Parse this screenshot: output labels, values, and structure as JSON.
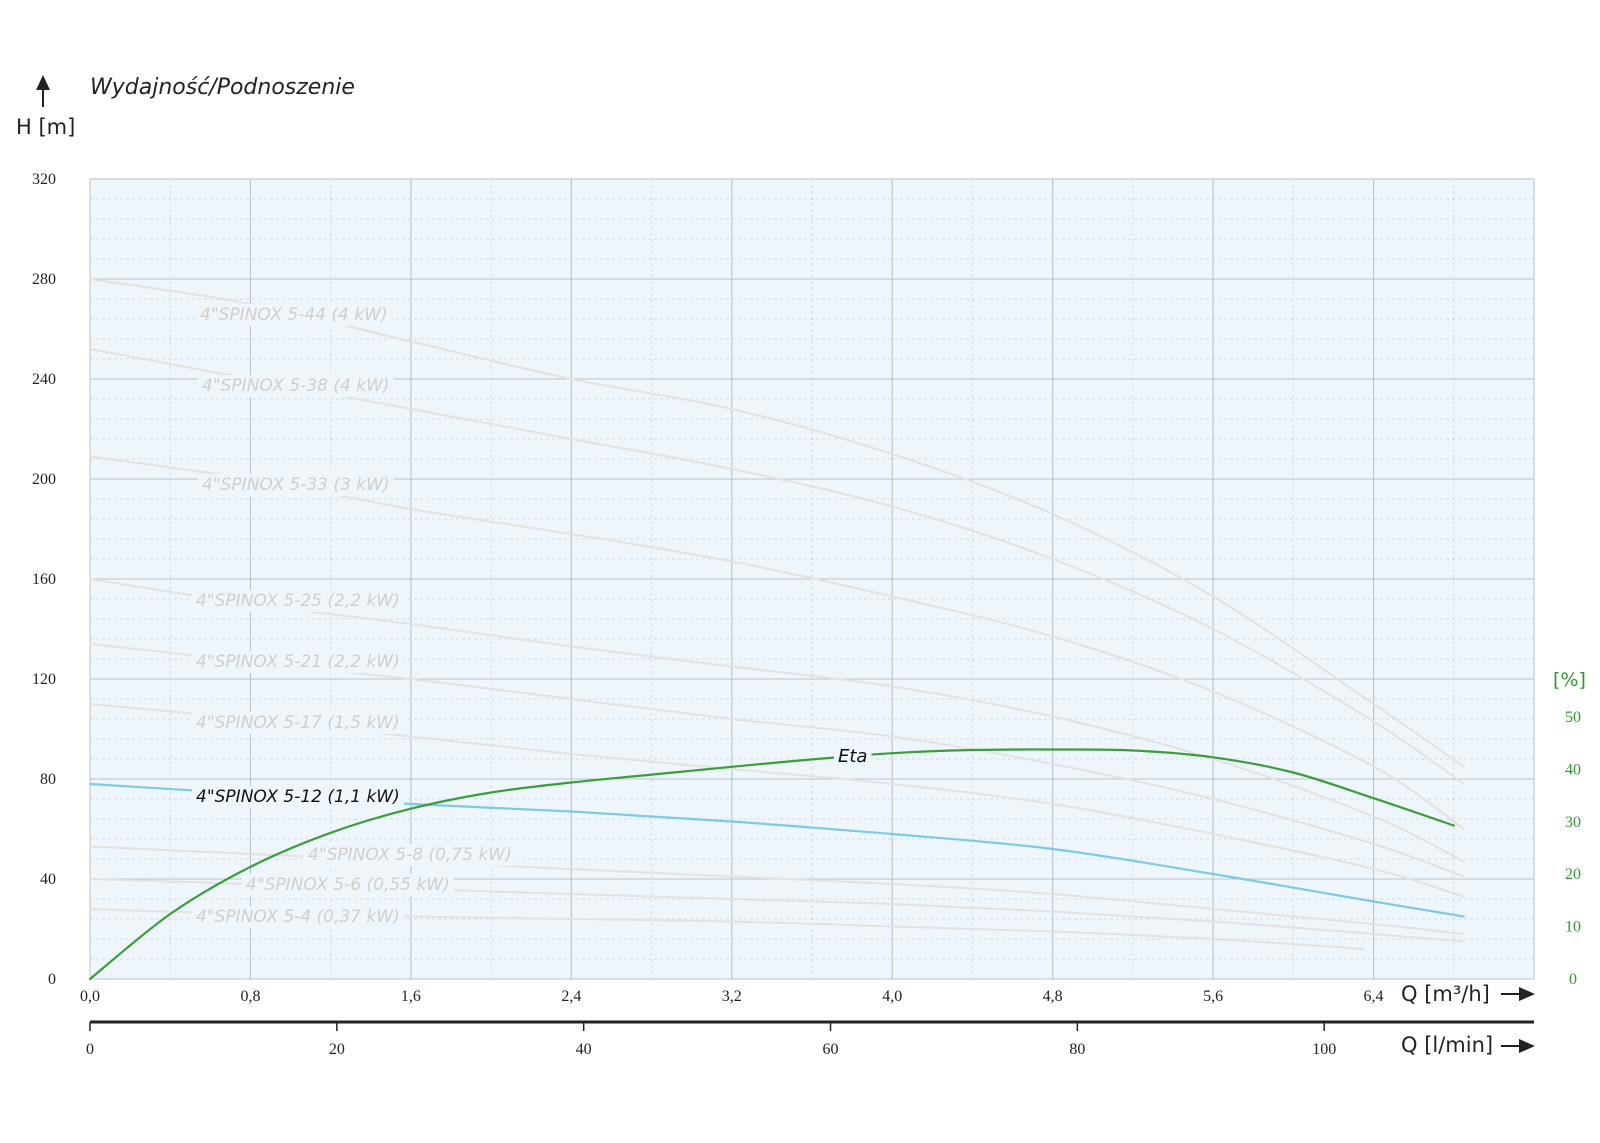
{
  "title": "Wydajność/Podnoszenie",
  "y_axis_label": "H [m]",
  "x_axis_label_m3h": "Q [m³/h]",
  "x_axis_label_lmin": "Q [l/min]",
  "eta_axis_label": "[%]",
  "colors": {
    "background": "#eef5fb",
    "grid_major": "#b9c3cc",
    "grid_minor": "#ccd5dd",
    "inactive_curve": "#e2e2e2",
    "active_curve": "#7ccae6",
    "eta_curve": "#3a9e3a"
  },
  "chart_data": {
    "type": "line",
    "title": "Wydajność/Podnoszenie",
    "xlabel": "Q [m³/h]",
    "ylabel": "H [m]",
    "xlim": [
      0,
      7.2
    ],
    "ylim": [
      0,
      320
    ],
    "x_ticks": [
      "0,0",
      "0,8",
      "1,6",
      "2,4",
      "3,2",
      "4,0",
      "4,8",
      "5,6",
      "6,4"
    ],
    "x_tick_values": [
      0,
      0.8,
      1.6,
      2.4,
      3.2,
      4.0,
      4.8,
      5.6,
      6.4
    ],
    "y_ticks": [
      "0",
      "40",
      "80",
      "120",
      "160",
      "200",
      "240",
      "280",
      "320"
    ],
    "y_tick_values": [
      0,
      40,
      80,
      120,
      160,
      200,
      240,
      280,
      320
    ],
    "secondary_x_axis": {
      "label": "Q [l/min]",
      "ticks": [
        "0",
        "20",
        "40",
        "60",
        "80",
        "100"
      ],
      "tick_values": [
        0,
        20,
        40,
        60,
        80,
        100
      ],
      "xlim": [
        0,
        117
      ]
    },
    "secondary_y_axis": {
      "label": "[%]",
      "ticks": [
        "0",
        "10",
        "20",
        "30",
        "40",
        "50"
      ],
      "tick_values": [
        0,
        10,
        20,
        30,
        40,
        50
      ]
    },
    "grid": true,
    "series": [
      {
        "name": "4\"SPINOX 5-44 (4 kW)",
        "active": false,
        "x": [
          0,
          0.8,
          1.6,
          2.4,
          3.2,
          4.0,
          4.8,
          5.6,
          6.4,
          6.85
        ],
        "y": [
          280,
          270,
          255,
          240,
          228,
          210,
          186,
          153,
          110,
          85
        ]
      },
      {
        "name": "4\"SPINOX 5-38 (4 kW)",
        "active": false,
        "x": [
          0,
          0.8,
          1.6,
          2.4,
          3.2,
          4.0,
          4.8,
          5.6,
          6.4,
          6.85
        ],
        "y": [
          252,
          240,
          228,
          216,
          204,
          189,
          168,
          140,
          103,
          78
        ]
      },
      {
        "name": "4\"SPINOX 5-33 (3 kW)",
        "active": false,
        "x": [
          0,
          0.8,
          1.6,
          2.4,
          3.2,
          4.0,
          4.8,
          5.6,
          6.4,
          6.85
        ],
        "y": [
          209,
          200,
          188,
          178,
          167,
          153,
          137,
          115,
          85,
          60
        ]
      },
      {
        "name": "4\"SPINOX 5-25 (2,2 kW)",
        "active": false,
        "x": [
          0,
          0.8,
          1.6,
          2.4,
          3.2,
          4.0,
          4.8,
          5.6,
          6.4,
          6.85
        ],
        "y": [
          160,
          150,
          142,
          133,
          125,
          117,
          105,
          88,
          65,
          47
        ]
      },
      {
        "name": "4\"SPINOX 5-21 (2,2 kW)",
        "active": false,
        "x": [
          0,
          0.8,
          1.6,
          2.4,
          3.2,
          4.0,
          4.8,
          5.6,
          6.4,
          6.85
        ],
        "y": [
          134,
          127,
          120,
          112,
          104,
          97,
          86,
          72,
          54,
          41
        ]
      },
      {
        "name": "4\"SPINOX 5-17 (1,5 kW)",
        "active": false,
        "x": [
          0,
          0.8,
          1.6,
          2.4,
          3.2,
          4.0,
          4.8,
          5.6,
          6.4,
          6.85
        ],
        "y": [
          110,
          104,
          97,
          90,
          84,
          78,
          70,
          58,
          44,
          33
        ]
      },
      {
        "name": "4\"SPINOX 5-12 (1,1 kW)",
        "active": true,
        "x": [
          0,
          0.8,
          1.6,
          2.4,
          3.2,
          4.0,
          4.8,
          5.6,
          6.4,
          6.85
        ],
        "y": [
          78,
          74,
          70,
          67,
          63,
          58,
          52,
          42,
          31,
          25
        ]
      },
      {
        "name": "4\"SPINOX 5-8 (0,75 kW)",
        "active": false,
        "x": [
          0,
          0.8,
          1.6,
          2.4,
          3.2,
          4.0,
          4.8,
          5.6,
          6.4,
          6.85
        ],
        "y": [
          53,
          50,
          47,
          44,
          41,
          38,
          34,
          28,
          22,
          18
        ]
      },
      {
        "name": "4\"SPINOX 5-6 (0,55 kW)",
        "active": false,
        "x": [
          0,
          0.8,
          1.6,
          2.4,
          3.2,
          4.0,
          4.8,
          5.6,
          6.4,
          6.85
        ],
        "y": [
          40,
          38,
          36,
          34,
          32,
          30,
          27,
          23,
          18,
          15
        ]
      },
      {
        "name": "4\"SPINOX 5-4 (0,37 kW)",
        "active": false,
        "x": [
          0,
          0.8,
          1.6,
          2.4,
          3.2,
          4.0,
          4.8,
          5.6,
          6.35
        ],
        "y": [
          28,
          26,
          25,
          24,
          23,
          21,
          19,
          16,
          12
        ]
      },
      {
        "name": "Eta",
        "axis": "secondary",
        "unit": "%",
        "x": [
          0,
          0.4,
          0.8,
          1.2,
          1.6,
          2.0,
          2.4,
          2.8,
          3.2,
          3.6,
          4.0,
          4.4,
          4.8,
          5.2,
          5.6,
          6.0,
          6.4,
          6.8
        ],
        "y": [
          0,
          12.4,
          21.4,
          27.9,
          32.5,
          35.6,
          37.5,
          39.0,
          40.5,
          41.9,
          43.1,
          43.7,
          43.8,
          43.6,
          42.3,
          39.4,
          34.5,
          29.3
        ]
      }
    ],
    "labels": [
      {
        "text": "4\"SPINOX 5-44 (4 kW)",
        "series": 0
      },
      {
        "text": "4\"SPINOX 5-38 (4 kW)",
        "series": 1
      },
      {
        "text": "4\"SPINOX 5-33 (3 kW)",
        "series": 2
      },
      {
        "text": "4\"SPINOX 5-25 (2,2 kW)",
        "series": 3
      },
      {
        "text": "4\"SPINOX 5-21 (2,2 kW)",
        "series": 4
      },
      {
        "text": "4\"SPINOX 5-17 (1,5 kW)",
        "series": 5
      },
      {
        "text": "4\"SPINOX 5-12 (1,1 kW)",
        "series": 6
      },
      {
        "text": "4\"SPINOX 5-8 (0,75 kW)",
        "series": 7
      },
      {
        "text": "4\"SPINOX 5-6 (0,55 kW)",
        "series": 8
      },
      {
        "text": "4\"SPINOX 5-4 (0,37 kW)",
        "series": 9
      },
      {
        "text": "Eta",
        "series": 10
      }
    ]
  }
}
